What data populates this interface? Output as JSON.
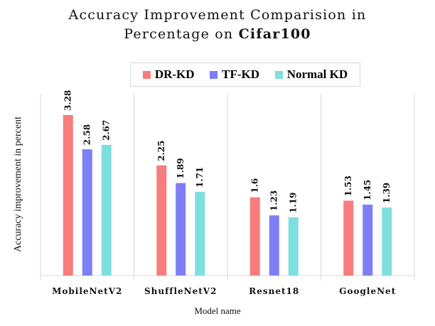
{
  "chart_data": {
    "type": "bar",
    "title": "Accuracy Improvement Comparision in Percentage on Cifar100",
    "title_line1": "Accuracy Improvement Comparision in",
    "title_line2_prefix": "Percentage on",
    "title_line2_bold": "Cifar100",
    "xlabel": "Model name",
    "ylabel": "Accuracy improvement in percent",
    "categories": [
      "MobileNetV2",
      "ShuffleNetV2",
      "Resnet18",
      "GoogleNet"
    ],
    "series": [
      {
        "name": "DR-KD",
        "color": "#f77d7d",
        "values": [
          3.28,
          2.25,
          1.6,
          1.53
        ],
        "labels": [
          "3.28",
          "2.25",
          "1.6",
          "1.53"
        ]
      },
      {
        "name": "TF-KD",
        "color": "#7f7ff5",
        "values": [
          2.58,
          1.89,
          1.23,
          1.45
        ],
        "labels": [
          "2.58",
          "1.89",
          "1.23",
          "1.45"
        ]
      },
      {
        "name": "Normal KD",
        "color": "#7fdfdf",
        "values": [
          2.67,
          1.71,
          1.19,
          1.39
        ],
        "labels": [
          "2.67",
          "1.71",
          "1.19",
          "1.39"
        ]
      }
    ],
    "ylim": [
      0,
      3.7
    ],
    "grid": false,
    "legend_position": "top"
  }
}
